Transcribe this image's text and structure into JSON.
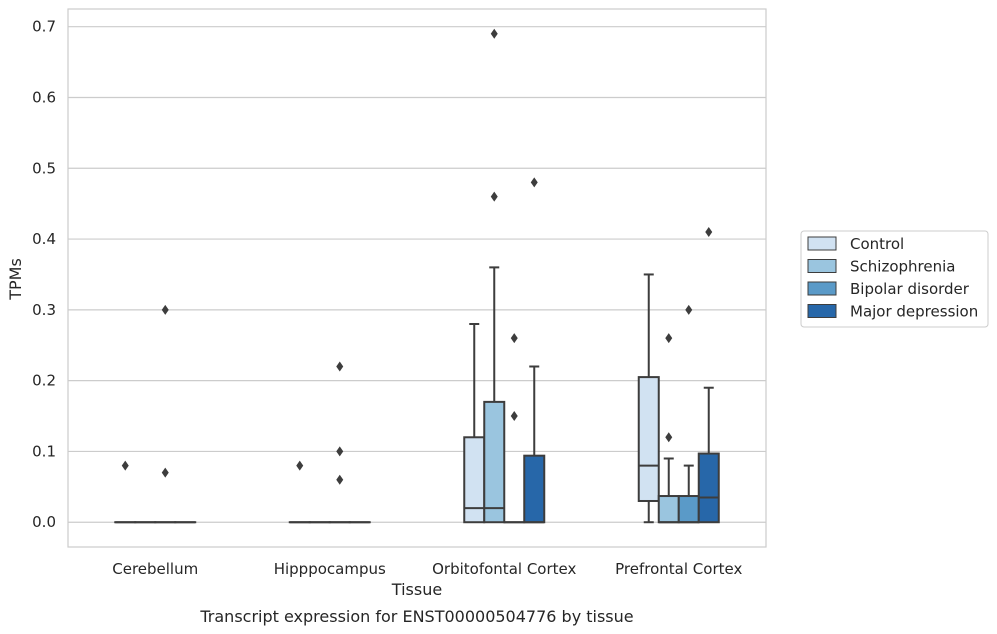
{
  "chart_data": {
    "type": "box",
    "xlabel": "Tissue",
    "ylabel": "TPMs",
    "caption": "Transcript expression for ENST00000504776 by tissue",
    "ylim": [
      -0.035,
      0.725
    ],
    "yticks": [
      "0.0",
      "0.1",
      "0.2",
      "0.3",
      "0.4",
      "0.5",
      "0.6",
      "0.7"
    ],
    "ytick_values": [
      0.0,
      0.1,
      0.2,
      0.3,
      0.4,
      0.5,
      0.6,
      0.7
    ],
    "grid": "horizontal",
    "legend_position": "right",
    "categories": [
      "Cerebellum",
      "Hipppocampus",
      "Orbitofontal Cortex",
      "Prefrontal Cortex"
    ],
    "series": [
      {
        "name": "Control",
        "color": "#d1e2f2",
        "boxes": [
          {
            "q1": 0,
            "median": 0,
            "q3": 0,
            "whislo": 0,
            "whishi": 0,
            "fliers": [
              0.08
            ]
          },
          {
            "q1": 0,
            "median": 0,
            "q3": 0,
            "whislo": 0,
            "whishi": 0,
            "fliers": [
              0.08
            ]
          },
          {
            "q1": 0,
            "median": 0.02,
            "q3": 0.12,
            "whislo": 0,
            "whishi": 0.28,
            "fliers": []
          },
          {
            "q1": 0.03,
            "median": 0.08,
            "q3": 0.205,
            "whislo": 0,
            "whishi": 0.35,
            "fliers": []
          }
        ]
      },
      {
        "name": "Schizophrenia",
        "color": "#9ac5df",
        "boxes": [
          {
            "q1": 0,
            "median": 0,
            "q3": 0,
            "whislo": 0,
            "whishi": 0,
            "fliers": []
          },
          {
            "q1": 0,
            "median": 0,
            "q3": 0,
            "whislo": 0,
            "whishi": 0,
            "fliers": []
          },
          {
            "q1": 0,
            "median": 0.02,
            "q3": 0.17,
            "whislo": 0,
            "whishi": 0.36,
            "fliers": [
              0.69,
              0.46
            ]
          },
          {
            "q1": 0,
            "median": 0,
            "q3": 0.037,
            "whislo": 0,
            "whishi": 0.09,
            "fliers": [
              0.26,
              0.12
            ]
          }
        ]
      },
      {
        "name": "Bipolar disorder",
        "color": "#5a9ac8",
        "boxes": [
          {
            "q1": 0,
            "median": 0,
            "q3": 0,
            "whislo": 0,
            "whishi": 0,
            "fliers": [
              0.07,
              0.3
            ]
          },
          {
            "q1": 0,
            "median": 0,
            "q3": 0,
            "whislo": 0,
            "whishi": 0,
            "fliers": [
              0.22,
              0.1,
              0.06
            ]
          },
          {
            "q1": 0,
            "median": 0,
            "q3": 0,
            "whislo": 0,
            "whishi": 0,
            "fliers": [
              0.26,
              0.15
            ]
          },
          {
            "q1": 0,
            "median": 0,
            "q3": 0.037,
            "whislo": 0,
            "whishi": 0.08,
            "fliers": [
              0.3
            ]
          }
        ]
      },
      {
        "name": "Major depression",
        "color": "#2767a9",
        "boxes": [
          {
            "q1": 0,
            "median": 0,
            "q3": 0,
            "whislo": 0,
            "whishi": 0,
            "fliers": []
          },
          {
            "q1": 0,
            "median": 0,
            "q3": 0,
            "whislo": 0,
            "whishi": 0,
            "fliers": []
          },
          {
            "q1": 0,
            "median": 0,
            "q3": 0.094,
            "whislo": 0,
            "whishi": 0.22,
            "fliers": [
              0.48
            ]
          },
          {
            "q1": 0,
            "median": 0.035,
            "q3": 0.097,
            "whislo": 0,
            "whishi": 0.19,
            "fliers": [
              0.41
            ]
          }
        ]
      }
    ]
  }
}
